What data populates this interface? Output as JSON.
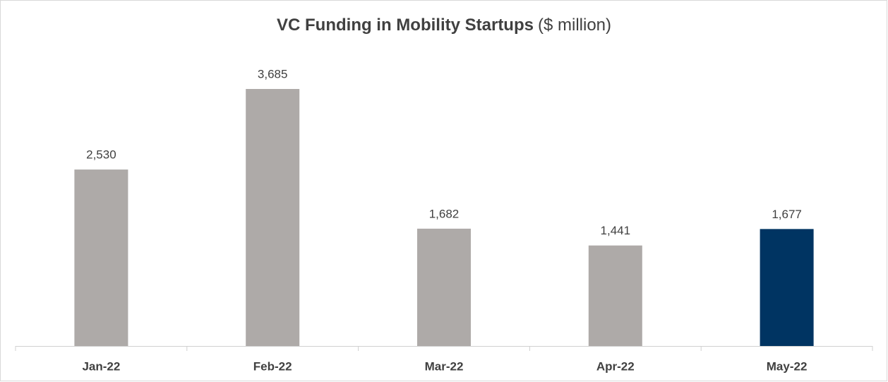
{
  "chart_data": {
    "type": "bar",
    "title": "VC Funding in Mobility Startups",
    "title_unit": "($ million)",
    "categories": [
      "Jan-22",
      "Feb-22",
      "Mar-22",
      "Apr-22",
      "May-22"
    ],
    "values": [
      2530,
      3685,
      1682,
      1441,
      1677
    ],
    "value_labels": [
      "2,530",
      "3,685",
      "1,682",
      "1,441",
      "1,677"
    ],
    "colors": [
      "#aeaaa8",
      "#aeaaa8",
      "#aeaaa8",
      "#aeaaa8",
      "#003462"
    ]
  }
}
